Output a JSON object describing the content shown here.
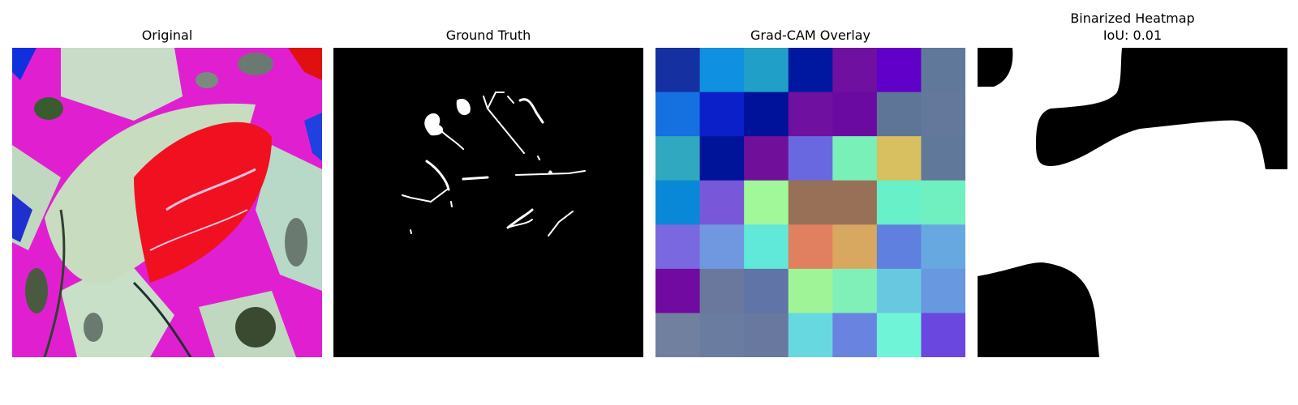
{
  "panels": [
    {
      "title": "Original"
    },
    {
      "title": "Ground Truth"
    },
    {
      "title": "Grad-CAM Overlay"
    },
    {
      "title": "Binarized Heatmap",
      "subtitle": "IoU: 0.01"
    }
  ],
  "gradcam": {
    "grid": [
      [
        "#1530a0",
        "#1090e0",
        "#20a0c8",
        "#0018a0",
        "#7010a0",
        "#6000c8",
        "#60789a"
      ],
      [
        "#1570e0",
        "#0b20c8",
        "#00129a",
        "#7010a0",
        "#6b0aa0",
        "#5e7598",
        "#64789c"
      ],
      [
        "#30a8c0",
        "#00149a",
        "#70109a",
        "#6a68e0",
        "#78f0b8",
        "#d8c060",
        "#60789a"
      ],
      [
        "#0a88d8",
        "#7858d8",
        "#a0f898",
        "#987058",
        "#987058",
        "#68f0c8",
        "#70f0c0"
      ],
      [
        "#7a68e0",
        "#7098e0",
        "#60e8d8",
        "#e08060",
        "#d8a860",
        "#6080e0",
        "#68a8e0"
      ],
      [
        "#700aa0",
        "#6a789e",
        "#6074a8",
        "#a0f498",
        "#80f0b8",
        "#68c8e0",
        "#6898e0"
      ],
      [
        "#70809e",
        "#6a7ca0",
        "#68789f",
        "#68d8e0",
        "#6884e0",
        "#70f4d8",
        "#6a48e0"
      ]
    ]
  }
}
